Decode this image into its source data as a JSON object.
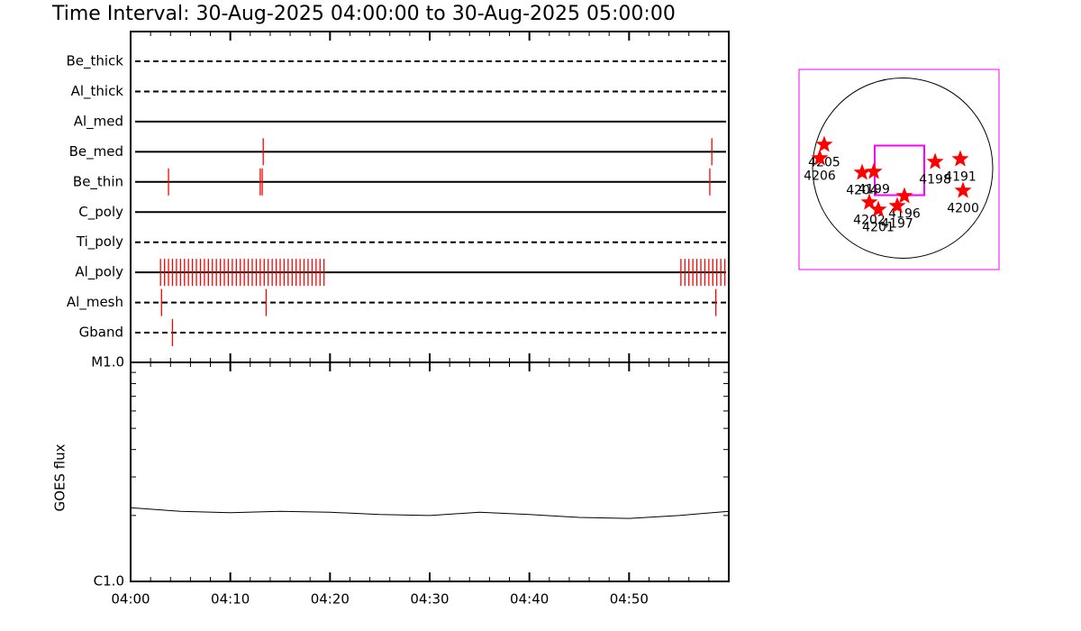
{
  "title": "Time Interval: 30-Aug-2025 04:00:00 to 30-Aug-2025 05:00:00",
  "chart_data": [
    {
      "type": "timeline",
      "xlim": [
        0,
        60
      ],
      "color": "#ff0000",
      "rows": [
        {
          "name": "Be_thick",
          "style": "dashed",
          "events": []
        },
        {
          "name": "Al_thick",
          "style": "dashed",
          "events": []
        },
        {
          "name": "Al_med",
          "style": "solid",
          "events": []
        },
        {
          "name": "Be_med",
          "style": "solid",
          "events": [
            13.3,
            58.3
          ]
        },
        {
          "name": "Be_thin",
          "style": "solid",
          "events": [
            3.8,
            13.0,
            13.2,
            58.1
          ]
        },
        {
          "name": "C_poly",
          "style": "solid",
          "events": []
        },
        {
          "name": "Ti_poly",
          "style": "dashed",
          "events": []
        },
        {
          "name": "Al_poly",
          "style": "solid",
          "events": [
            3.0,
            3.4,
            3.8,
            4.2,
            4.6,
            5.0,
            5.4,
            5.8,
            6.2,
            6.6,
            7.0,
            7.4,
            7.8,
            8.2,
            8.6,
            9.0,
            9.4,
            9.8,
            10.2,
            10.6,
            11.0,
            11.4,
            11.8,
            12.2,
            12.6,
            13.0,
            13.4,
            13.8,
            14.2,
            14.6,
            15.0,
            15.4,
            15.8,
            16.2,
            16.6,
            17.0,
            17.4,
            17.8,
            18.2,
            18.6,
            19.0,
            19.4,
            55.2,
            55.6,
            56.0,
            56.4,
            56.8,
            57.2,
            57.6,
            58.0,
            58.4,
            58.8,
            59.2,
            59.6
          ]
        },
        {
          "name": "Al_mesh",
          "style": "dashed",
          "events": [
            3.1,
            13.6,
            58.7
          ]
        },
        {
          "name": "Gband",
          "style": "dashed",
          "events": [
            4.2
          ]
        }
      ]
    },
    {
      "type": "line",
      "ylabel": "GOES flux",
      "log_y": true,
      "color": "#000000",
      "x": [
        0,
        5,
        10,
        15,
        20,
        25,
        30,
        35,
        40,
        45,
        50,
        55,
        60
      ],
      "values": [
        2.17e-06,
        2.09e-06,
        2.06e-06,
        2.09e-06,
        2.07e-06,
        2.02e-06,
        2e-06,
        2.07e-06,
        2.02e-06,
        1.96e-06,
        1.94e-06,
        2e-06,
        2.09e-06
      ],
      "xlim": [
        0,
        60
      ],
      "xticks": [
        {
          "value": 0,
          "label": "04:00"
        },
        {
          "value": 10,
          "label": "04:10"
        },
        {
          "value": 20,
          "label": "04:20"
        },
        {
          "value": 30,
          "label": "04:30"
        },
        {
          "value": 40,
          "label": "04:40"
        },
        {
          "value": 50,
          "label": "04:50"
        }
      ],
      "ylim": [
        1e-06,
        1e-05
      ],
      "yticks": [
        {
          "value": 1e-06,
          "label": "C1.0"
        },
        {
          "value": 1e-05,
          "label": "M1.0"
        }
      ]
    }
  ],
  "map": {
    "xlim": [
      -1100,
      1100
    ],
    "ylim": [
      -1100,
      1100
    ],
    "frame_color": "#ff00ff",
    "star_color": "#ff0000",
    "sun": {
      "x": 40,
      "y": 15,
      "r": 991
    },
    "fov": {
      "x": 5,
      "y": -10,
      "width": 545,
      "height": 545
    },
    "regions": [
      {
        "label": "4205",
        "x": -823,
        "y": 273
      },
      {
        "label": "4206",
        "x": -872,
        "y": 124
      },
      {
        "label": "4204",
        "x": -406,
        "y": -35
      },
      {
        "label": "4199",
        "x": -277,
        "y": -25
      },
      {
        "label": "4198",
        "x": 397,
        "y": 84
      },
      {
        "label": "4191",
        "x": 674,
        "y": 114
      },
      {
        "label": "4200",
        "x": 704,
        "y": -233
      },
      {
        "label": "4196",
        "x": 59,
        "y": -292
      },
      {
        "label": "4202",
        "x": -327,
        "y": -362
      },
      {
        "label": "4201",
        "x": -228,
        "y": -441
      },
      {
        "label": "4197",
        "x": -20,
        "y": -401
      }
    ]
  }
}
